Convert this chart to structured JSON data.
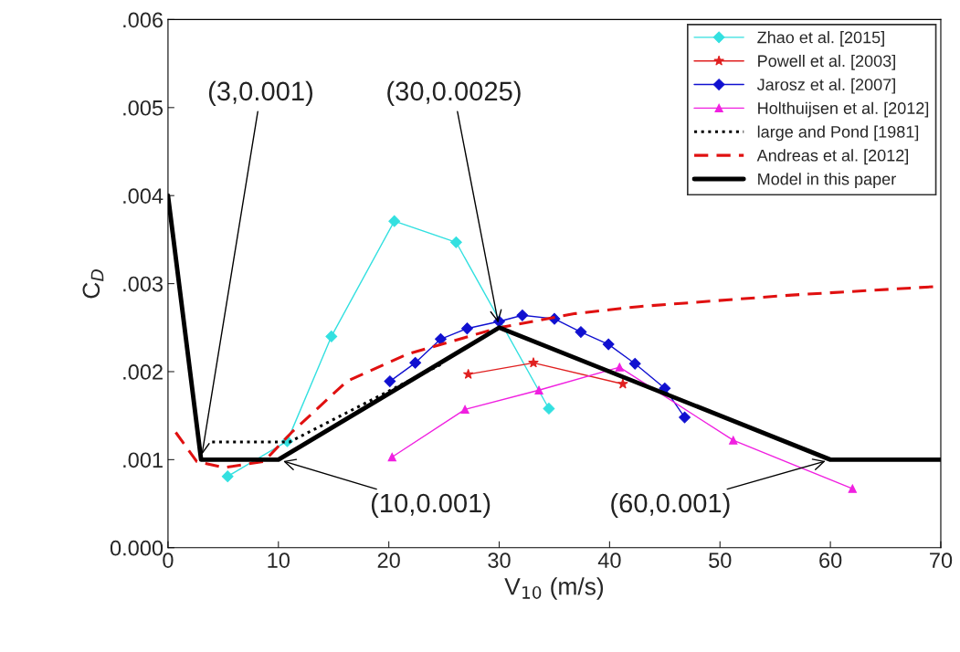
{
  "chart_data": {
    "type": "line",
    "xlabel": "V$_{10}$ (m/s)",
    "ylabel": "C$_{D}$",
    "xlim": [
      0,
      70
    ],
    "xticks": [
      0,
      10,
      20,
      30,
      40,
      50,
      60,
      70
    ],
    "ylim": [
      0,
      0.006
    ],
    "yticks": [
      {
        "value": 0,
        "label": "0.000"
      },
      {
        "value": 0.001,
        "label": ".001"
      },
      {
        "value": 0.002,
        "label": ".002"
      },
      {
        "value": 0.003,
        "label": ".003"
      },
      {
        "value": 0.004,
        "label": ".004"
      },
      {
        "value": 0.005,
        "label": ".005"
      },
      {
        "value": 0.006,
        "label": ".006"
      }
    ],
    "grid": false,
    "legend": "top right",
    "series": [
      {
        "name": "Zhao et al. [2015]",
        "color": "#33e0e0",
        "marker": "diamond",
        "line_style": "solid",
        "x": [
          5.4,
          10.8,
          14.8,
          20.5,
          26.1,
          34.5
        ],
        "values": [
          0.00081,
          0.00121,
          0.0024,
          0.00371,
          0.00347,
          0.00158
        ]
      },
      {
        "name": "Powell et al. [2003]",
        "color": "#e02020",
        "marker": "star",
        "line_style": "solid",
        "x": [
          27.2,
          33.1,
          41.2
        ],
        "values": [
          0.00197,
          0.0021,
          0.00186
        ]
      },
      {
        "name": "Jarosz et al. [2007]",
        "color": "#1010d0",
        "marker": "diamond",
        "line_style": "solid",
        "x": [
          20.1,
          22.4,
          24.7,
          27.1,
          30.0,
          32.1,
          35.0,
          37.4,
          39.9,
          42.3,
          45.0,
          46.8
        ],
        "values": [
          0.00189,
          0.0021,
          0.00237,
          0.00249,
          0.00257,
          0.00264,
          0.0026,
          0.00245,
          0.00231,
          0.00209,
          0.00181,
          0.00148
        ]
      },
      {
        "name": "Holthuijsen et al. [2012]",
        "color": "#f020e0",
        "marker": "triangle",
        "line_style": "solid",
        "x": [
          20.3,
          26.9,
          33.6,
          40.9,
          51.2,
          62.0
        ],
        "values": [
          0.00103,
          0.00157,
          0.00179,
          0.00205,
          0.00122,
          0.00067
        ]
      },
      {
        "name": "large and Pond [1981]",
        "color": "#000000",
        "marker": "none",
        "line_style": "dotted",
        "x": [
          4,
          11,
          25
        ],
        "values": [
          0.0012,
          0.0012,
          0.0021
        ]
      },
      {
        "name": "Andreas et al. [2012]",
        "color": "#e01010",
        "marker": "none",
        "line_style": "dashed",
        "x": [
          0.7,
          2.6,
          5.1,
          8.7,
          11.2,
          16.2,
          21.7,
          30.0,
          36.9,
          42.7,
          56.5,
          70.0
        ],
        "values": [
          0.00131,
          0.00098,
          0.00091,
          0.00098,
          0.00131,
          0.00189,
          0.0022,
          0.0025,
          0.00266,
          0.00274,
          0.00287,
          0.00297
        ]
      },
      {
        "name": "Model in this paper",
        "color": "#000000",
        "marker": "none",
        "line_style": "solid",
        "x": [
          0,
          3,
          10,
          30,
          60,
          70
        ],
        "values": [
          0.004,
          0.001,
          0.001,
          0.0025,
          0.001,
          0.001
        ]
      }
    ],
    "annotations": [
      {
        "text": "(3,0.001)",
        "x": 3,
        "y": 0.001
      },
      {
        "text": "(30,0.0025)",
        "x": 30,
        "y": 0.0025
      },
      {
        "text": "(10,0.001)",
        "x": 10,
        "y": 0.001
      },
      {
        "text": "(60,0.001)",
        "x": 60,
        "y": 0.001
      }
    ]
  }
}
